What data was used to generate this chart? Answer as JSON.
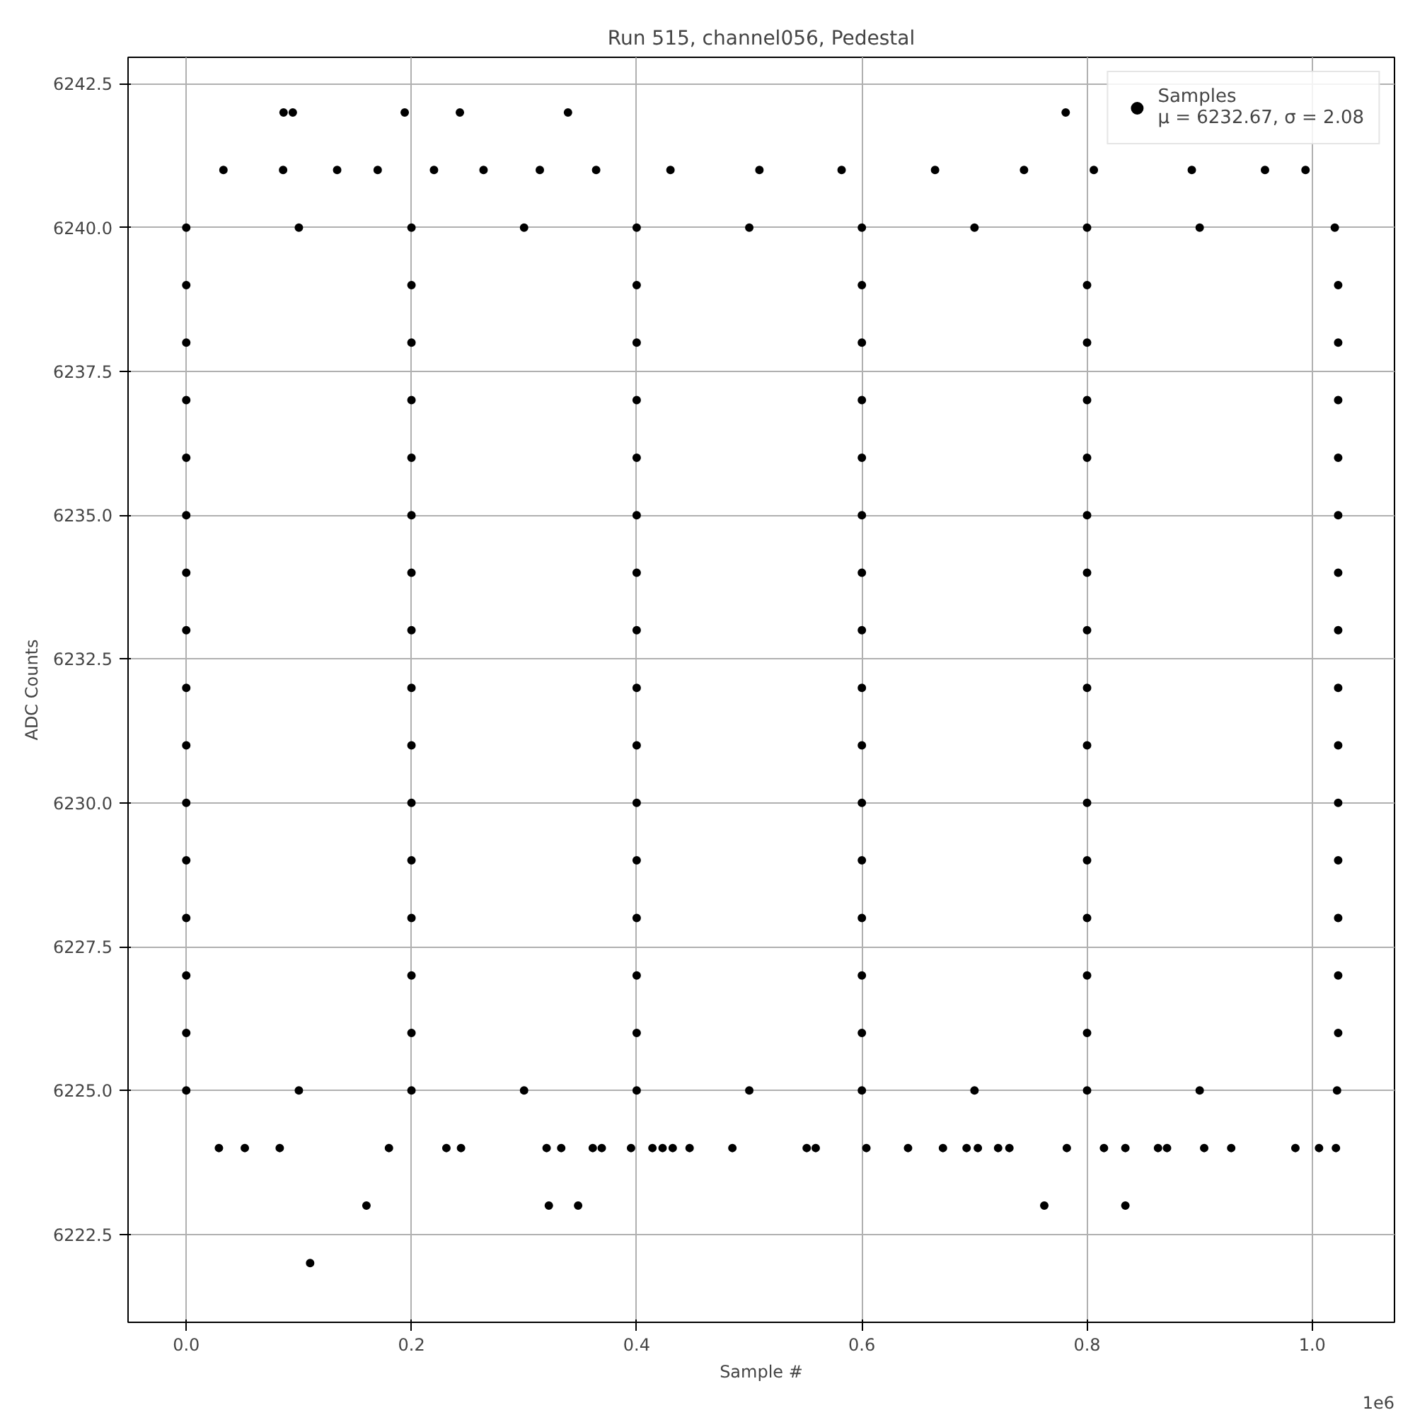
{
  "chart_data": {
    "type": "scatter",
    "title": "Run 515, channel056, Pedestal",
    "xlabel": "Sample #",
    "ylabel": "ADC Counts",
    "annotations": [
      "1e6"
    ],
    "xlim": [
      -0.0517,
      1.073
    ],
    "ylim": [
      6220.97,
      6242.96
    ],
    "xticks": [
      {
        "value": 0,
        "label": "0.0"
      },
      0.2,
      0.4,
      0.6,
      0.8,
      {
        "value": 1,
        "label": "1.0"
      }
    ],
    "yticks": [
      {
        "value": 6222.5,
        "label": "6222.5"
      },
      {
        "value": 6225,
        "label": "6225.0"
      },
      {
        "value": 6227.5,
        "label": "6227.5"
      },
      {
        "value": 6230,
        "label": "6230.0"
      },
      {
        "value": 6232.5,
        "label": "6232.5"
      },
      {
        "value": 6235,
        "label": "6235.0"
      },
      {
        "value": 6237.5,
        "label": "6237.5"
      },
      {
        "value": 6240,
        "label": "6240.0"
      },
      {
        "value": 6242.5,
        "label": "6242.5"
      }
    ],
    "grid": true,
    "legend": "top right",
    "marker": "circle",
    "series": [
      {
        "name": "Samples\nμ = 6232.67, σ = 2.08",
        "color": "#000000",
        "x": [
          0.0864,
          0.0946,
          0.194,
          0.243,
          0.339,
          0.781,
          0.16,
          0.322,
          0.348,
          0.762,
          0.834,
          0.11,
          0.029,
          0.052,
          0.083,
          0.18,
          0.231,
          0.244,
          0.32,
          0.333,
          0.361,
          0.369,
          0.395,
          0.414,
          0.423,
          0.432,
          0.447,
          0.485,
          0.551,
          0.559,
          0.604,
          0.641,
          0.672,
          0.693,
          0.703,
          0.721,
          0.731,
          0.782,
          0.815,
          0.834,
          0.863,
          0.871,
          0.904,
          0.928,
          0.985,
          1.006,
          1.021,
          0.033,
          0.086,
          0.134,
          0.17,
          0.22,
          0.264,
          0.314,
          0.364,
          0.43,
          0.509,
          0.582,
          0.665,
          0.744,
          0.806,
          0.893,
          0.958,
          0.994,
          0,
          0.1,
          0.2,
          0.3,
          0.4,
          0.5,
          0.6,
          0.7,
          0.8,
          0.9,
          1.02,
          0,
          0.1,
          0.2,
          0.3,
          0.4,
          0.5,
          0.6,
          0.7,
          0.8,
          0.9,
          1.022,
          0,
          0.2,
          0.4,
          0.6,
          0.8,
          1.023,
          0,
          0.2,
          0.4,
          0.6,
          0.8,
          1.023,
          0,
          0.2,
          0.4,
          0.6,
          0.8,
          1.023,
          0,
          0.2,
          0.4,
          0.6,
          0.8,
          1.023,
          0,
          0.2,
          0.4,
          0.6,
          0.8,
          1.023,
          0,
          0.2,
          0.4,
          0.6,
          0.8,
          1.023,
          0,
          0.2,
          0.4,
          0.6,
          0.8,
          1.023,
          0,
          0.2,
          0.4,
          0.6,
          0.8,
          1.023,
          0,
          0.2,
          0.4,
          0.6,
          0.8,
          1.023,
          0,
          0.2,
          0.4,
          0.6,
          0.8,
          1.023,
          0,
          0.2,
          0.4,
          0.6,
          0.8,
          1.023,
          0,
          0.2,
          0.4,
          0.6,
          0.8,
          1.023,
          0,
          0.2,
          0.4,
          0.6,
          0.8,
          1.023,
          0,
          0.2,
          0.4,
          0.6,
          0.8,
          1.023
        ],
        "values": [
          6242,
          6242,
          6242,
          6242,
          6242,
          6242,
          6223,
          6223,
          6223,
          6223,
          6223,
          6222,
          6224,
          6224,
          6224,
          6224,
          6224,
          6224,
          6224,
          6224,
          6224,
          6224,
          6224,
          6224,
          6224,
          6224,
          6224,
          6224,
          6224,
          6224,
          6224,
          6224,
          6224,
          6224,
          6224,
          6224,
          6224,
          6224,
          6224,
          6224,
          6224,
          6224,
          6224,
          6224,
          6224,
          6224,
          6224,
          6241,
          6241,
          6241,
          6241,
          6241,
          6241,
          6241,
          6241,
          6241,
          6241,
          6241,
          6241,
          6241,
          6241,
          6241,
          6241,
          6241,
          6240,
          6240,
          6240,
          6240,
          6240,
          6240,
          6240,
          6240,
          6240,
          6240,
          6240,
          6225,
          6225,
          6225,
          6225,
          6225,
          6225,
          6225,
          6225,
          6225,
          6225,
          6225,
          6226,
          6226,
          6226,
          6226,
          6226,
          6226,
          6227,
          6227,
          6227,
          6227,
          6227,
          6227,
          6228,
          6228,
          6228,
          6228,
          6228,
          6228,
          6229,
          6229,
          6229,
          6229,
          6229,
          6229,
          6230,
          6230,
          6230,
          6230,
          6230,
          6230,
          6231,
          6231,
          6231,
          6231,
          6231,
          6231,
          6232,
          6232,
          6232,
          6232,
          6232,
          6232,
          6233,
          6233,
          6233,
          6233,
          6233,
          6233,
          6234,
          6234,
          6234,
          6234,
          6234,
          6234,
          6235,
          6235,
          6235,
          6235,
          6235,
          6235,
          6236,
          6236,
          6236,
          6236,
          6236,
          6236,
          6237,
          6237,
          6237,
          6237,
          6237,
          6237,
          6238,
          6238,
          6238,
          6238,
          6238,
          6238,
          6239,
          6239,
          6239,
          6239,
          6239,
          6239
        ]
      }
    ]
  }
}
